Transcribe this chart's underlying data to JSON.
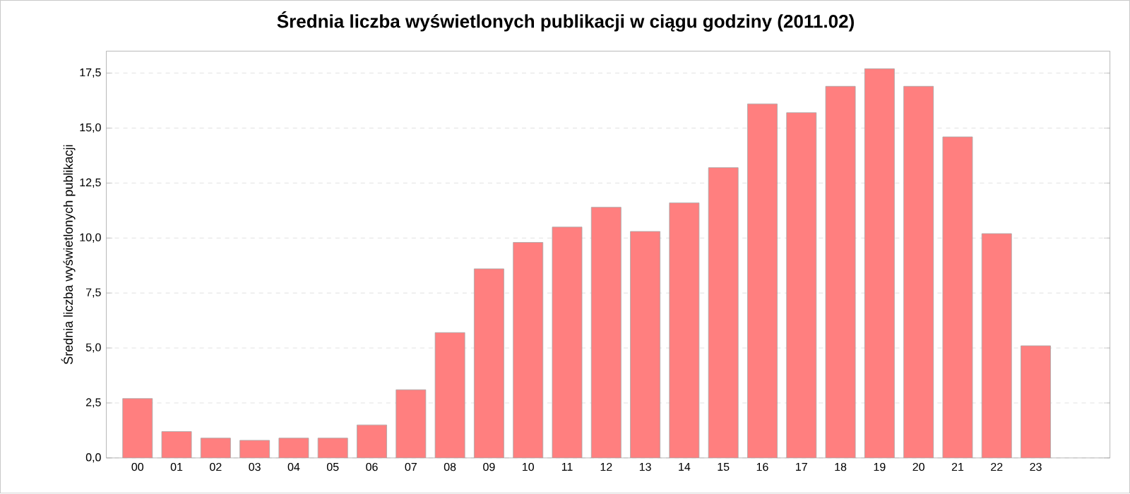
{
  "chart_data": {
    "type": "bar",
    "title": "Średnia liczba wyświetlonych publikacji w ciągu godziny (2011.02)",
    "ylabel": "Średnia liczba wyświetlonych publikacji",
    "categories": [
      "00",
      "01",
      "02",
      "03",
      "04",
      "05",
      "06",
      "07",
      "08",
      "09",
      "10",
      "11",
      "12",
      "13",
      "14",
      "15",
      "16",
      "17",
      "18",
      "19",
      "20",
      "21",
      "22",
      "23"
    ],
    "values": [
      2.7,
      1.2,
      0.9,
      0.8,
      0.9,
      0.9,
      1.5,
      3.1,
      5.7,
      8.6,
      9.8,
      10.5,
      11.4,
      10.3,
      11.6,
      13.2,
      16.1,
      15.7,
      16.9,
      17.7,
      16.9,
      14.6,
      10.2,
      5.1
    ],
    "color": "#ff7f7f",
    "ylim": [
      0,
      18.5
    ],
    "yticks": [
      {
        "value": 0,
        "label": "0,0"
      },
      {
        "value": 2.5,
        "label": "2,5"
      },
      {
        "value": 5,
        "label": "5,0"
      },
      {
        "value": 7.5,
        "label": "7,5"
      },
      {
        "value": 10,
        "label": "10,0"
      },
      {
        "value": 12.5,
        "label": "12,5"
      },
      {
        "value": 15,
        "label": "15,0"
      },
      {
        "value": 17.5,
        "label": "17,5"
      }
    ],
    "grid": "y"
  }
}
